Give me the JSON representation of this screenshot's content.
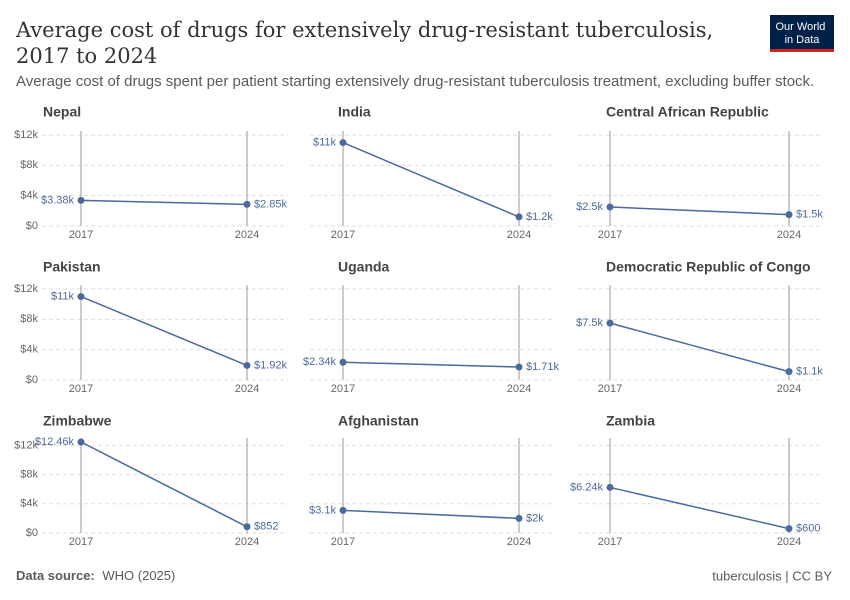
{
  "title": "Average cost of drugs for extensively drug-resistant tuberculosis, 2017 to 2024",
  "subtitle": "Average cost of drugs spent per patient starting extensively drug-resistant tuberculosis treatment, excluding buffer stock.",
  "logo": "Our World in Data",
  "source_label": "Data source:",
  "source": "WHO (2025)",
  "license": "tuberculosis | CC BY",
  "chart_data": [
    {
      "type": "line",
      "title": "Nepal",
      "x": [
        "2017",
        "2024"
      ],
      "values": [
        3380,
        2850
      ],
      "value_labels": [
        "$3.38k",
        "$2.85k"
      ],
      "color": "#4c6a9c",
      "ylim": [
        0,
        12000
      ],
      "yticks": [
        {
          "value": 0,
          "label": "$0"
        },
        {
          "value": 4000,
          "label": "$4k"
        },
        {
          "value": 8000,
          "label": "$8k"
        },
        {
          "value": 12000,
          "label": "$12k"
        }
      ]
    },
    {
      "type": "line",
      "title": "India",
      "x": [
        "2017",
        "2024"
      ],
      "values": [
        11000,
        1200
      ],
      "value_labels": [
        "$11k",
        "$1.2k"
      ],
      "color": "#4c6a9c",
      "ylim": [
        0,
        12000
      ],
      "yticks": [
        0,
        4000,
        8000,
        12000
      ]
    },
    {
      "type": "line",
      "title": "Central African Republic",
      "x": [
        "2017",
        "2024"
      ],
      "values": [
        2500,
        1500
      ],
      "value_labels": [
        "$2.5k",
        "$1.5k"
      ],
      "color": "#4c6a9c",
      "ylim": [
        0,
        12000
      ],
      "yticks": [
        0,
        4000,
        8000,
        12000
      ]
    },
    {
      "type": "line",
      "title": "Pakistan",
      "x": [
        "2017",
        "2024"
      ],
      "values": [
        11000,
        1920
      ],
      "value_labels": [
        "$11k",
        "$1.92k"
      ],
      "color": "#4c6a9c",
      "ylim": [
        0,
        12000
      ],
      "yticks": [
        {
          "value": 0,
          "label": "$0"
        },
        {
          "value": 4000,
          "label": "$4k"
        },
        {
          "value": 8000,
          "label": "$8k"
        },
        {
          "value": 12000,
          "label": "$12k"
        }
      ]
    },
    {
      "type": "line",
      "title": "Uganda",
      "x": [
        "2017",
        "2024"
      ],
      "values": [
        2340,
        1710
      ],
      "value_labels": [
        "$2.34k",
        "$1.71k"
      ],
      "color": "#4c6a9c",
      "ylim": [
        0,
        12000
      ],
      "yticks": [
        0,
        4000,
        8000,
        12000
      ]
    },
    {
      "type": "line",
      "title": "Democratic Republic of Congo",
      "x": [
        "2017",
        "2024"
      ],
      "values": [
        7500,
        1100
      ],
      "value_labels": [
        "$7.5k",
        "$1.1k"
      ],
      "color": "#4c6a9c",
      "ylim": [
        0,
        12000
      ],
      "yticks": [
        0,
        4000,
        8000,
        12000
      ]
    },
    {
      "type": "line",
      "title": "Zimbabwe",
      "x": [
        "2017",
        "2024"
      ],
      "values": [
        12460,
        852
      ],
      "value_labels": [
        "$12.46k",
        "$852"
      ],
      "color": "#4c6a9c",
      "ylim": [
        0,
        12460
      ],
      "yticks": [
        {
          "value": 0,
          "label": "$0"
        },
        {
          "value": 4000,
          "label": "$4k"
        },
        {
          "value": 8000,
          "label": "$8k"
        },
        {
          "value": 12000,
          "label": "$12k"
        }
      ]
    },
    {
      "type": "line",
      "title": "Afghanistan",
      "x": [
        "2017",
        "2024"
      ],
      "values": [
        3100,
        2000
      ],
      "value_labels": [
        "$3.1k",
        "$2k"
      ],
      "color": "#4c6a9c",
      "ylim": [
        0,
        12460
      ],
      "yticks": [
        0,
        4000,
        8000,
        12000
      ]
    },
    {
      "type": "line",
      "title": "Zambia",
      "x": [
        "2017",
        "2024"
      ],
      "values": [
        6240,
        600
      ],
      "value_labels": [
        "$6.24k",
        "$600"
      ],
      "color": "#4c6a9c",
      "ylim": [
        0,
        12460
      ],
      "yticks": [
        0,
        4000,
        8000,
        12000
      ]
    }
  ]
}
